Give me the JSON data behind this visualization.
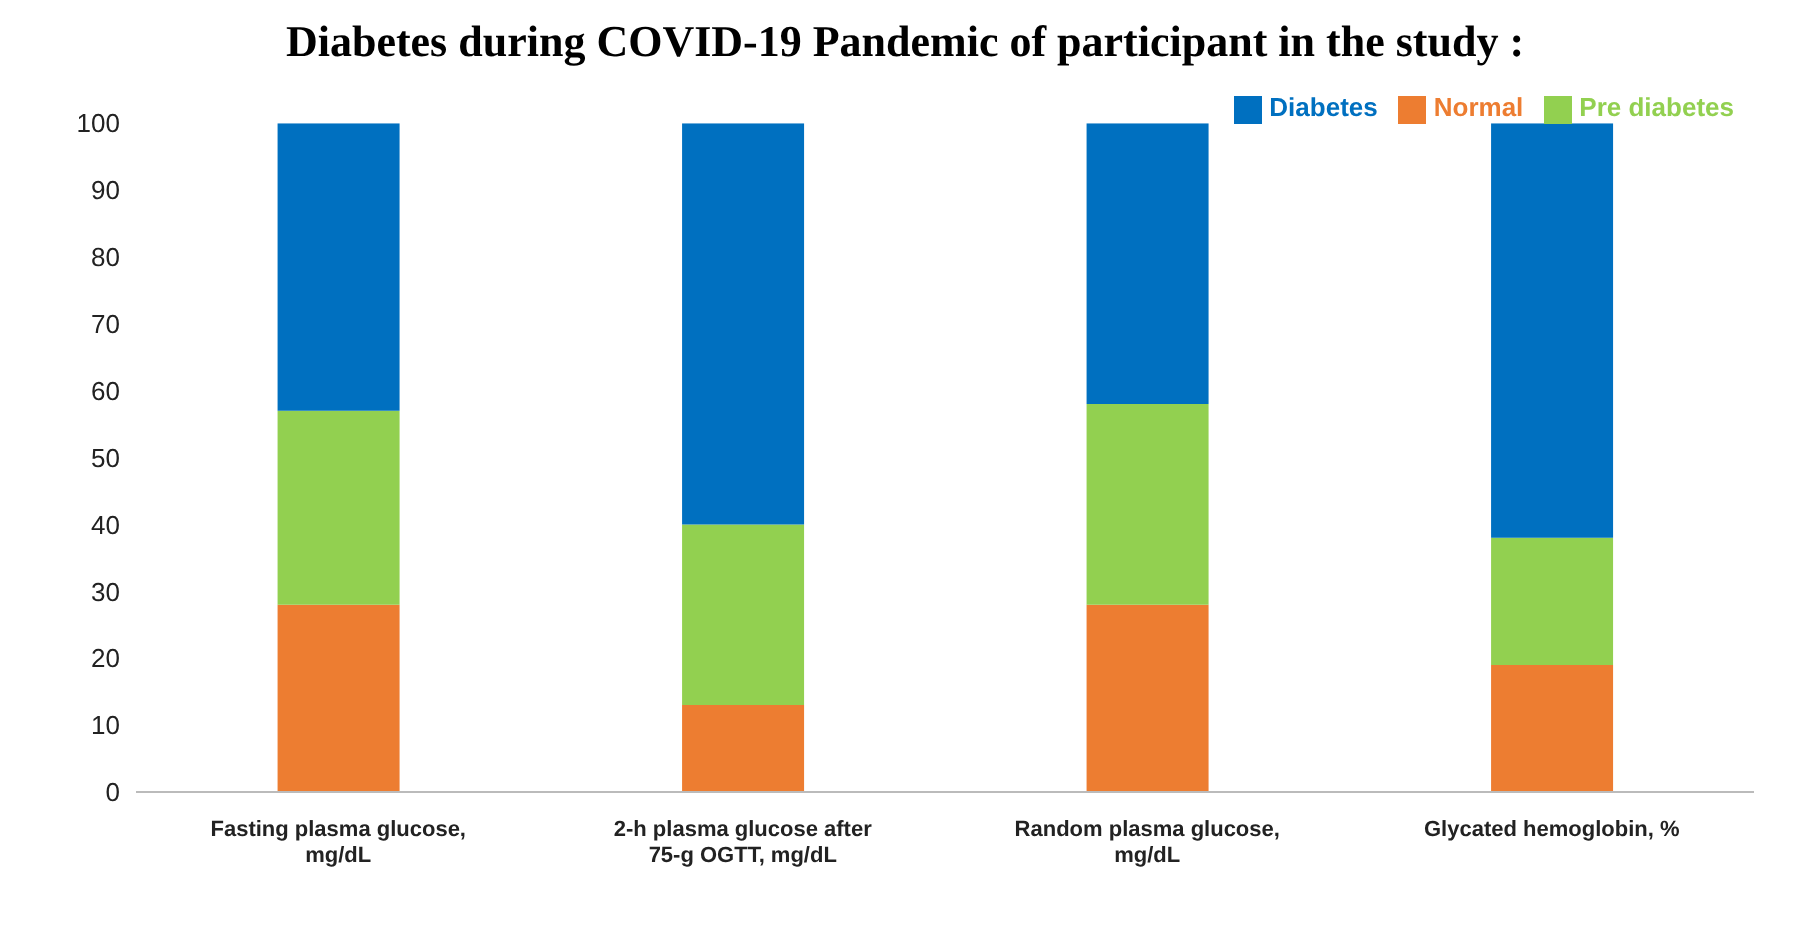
{
  "chart_data": {
    "type": "bar",
    "title": "Diabetes during COVID-19 Pandemic of participant in the study :",
    "categories": [
      "Fasting plasma glucose, mg/dL",
      "2-h plasma glucose after 75-g OGTT, mg/dL",
      "Random plasma glucose, mg/dL",
      "Glycated hemoglobin, %"
    ],
    "stacked": true,
    "legend": "top right",
    "ylim": [
      0,
      100
    ],
    "yticks": [
      0,
      10,
      20,
      30,
      40,
      50,
      60,
      70,
      80,
      90,
      100
    ],
    "series": [
      {
        "name": "Normal",
        "color": "#ed7d31",
        "values": [
          28,
          13,
          28,
          19
        ]
      },
      {
        "name": "Pre diabetes",
        "color": "#92d050",
        "values": [
          29,
          27,
          30,
          19
        ]
      },
      {
        "name": "Diabetes",
        "color": "#0070c0",
        "values": [
          43,
          60,
          42,
          62
        ]
      }
    ]
  }
}
